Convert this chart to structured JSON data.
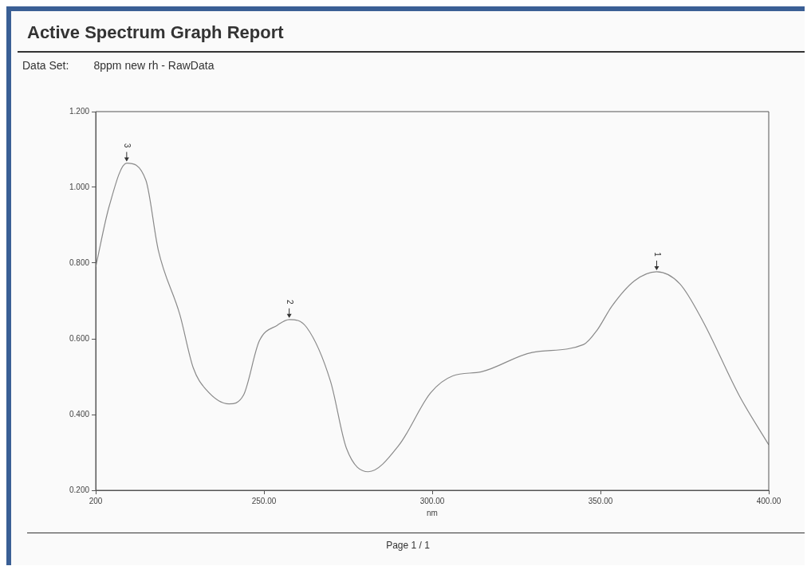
{
  "chart_data": {
    "type": "line",
    "title": "Active Spectrum Graph Report",
    "subtitle": "Data Set:        8ppm new rh - RawData",
    "xlabel": "nm",
    "x": [
      200,
      204,
      209.2,
      214.9,
      218.6,
      225,
      229,
      232.8,
      239.6,
      243.9,
      248.6,
      254,
      257.5,
      262.7,
      269.8,
      274.5,
      281,
      290.1,
      299.5,
      306.1,
      314.6,
      329.7,
      345,
      349,
      353.3,
      360.1,
      366.7,
      373.6,
      380.4,
      391.3,
      400
    ],
    "series": [
      {
        "color": "#8a8a8a",
        "values": [
          0.79,
          0.95,
          1.064,
          1.019,
          0.834,
          0.664,
          0.523,
          0.466,
          0.428,
          0.451,
          0.594,
          0.636,
          0.651,
          0.63,
          0.487,
          0.311,
          0.249,
          0.319,
          0.457,
          0.502,
          0.513,
          0.564,
          0.585,
          0.623,
          0.685,
          0.753,
          0.777,
          0.745,
          0.647,
          0.449,
          0.32
        ]
      }
    ],
    "xlim": [
      200,
      400
    ],
    "ylim": [
      0.2,
      1.2
    ],
    "xticks": [
      200,
      {
        "value": 250,
        "label": "250.00"
      },
      {
        "value": 300,
        "label": "300.00"
      },
      {
        "value": 350,
        "label": "350.00"
      },
      {
        "value": 400,
        "label": "400.00"
      }
    ],
    "yticks": [
      {
        "value": 0.2,
        "label": "0.200"
      },
      {
        "value": 0.4,
        "label": "0.400"
      },
      {
        "value": 0.6,
        "label": "0.600"
      },
      {
        "value": 0.8,
        "label": "0.800"
      },
      {
        "value": 1,
        "label": "1.000"
      },
      {
        "value": 1.2,
        "label": "1.200"
      }
    ],
    "annotations": [
      {
        "text": "3",
        "x": 209.2,
        "y": 1.064
      },
      {
        "text": "2",
        "x": 257.5,
        "y": 0.651
      },
      {
        "text": "1",
        "x": 366.7,
        "y": 0.777
      },
      "Page 1 / 1"
    ],
    "grid": false,
    "legend": false,
    "marker": "none",
    "line_style": "solid"
  }
}
